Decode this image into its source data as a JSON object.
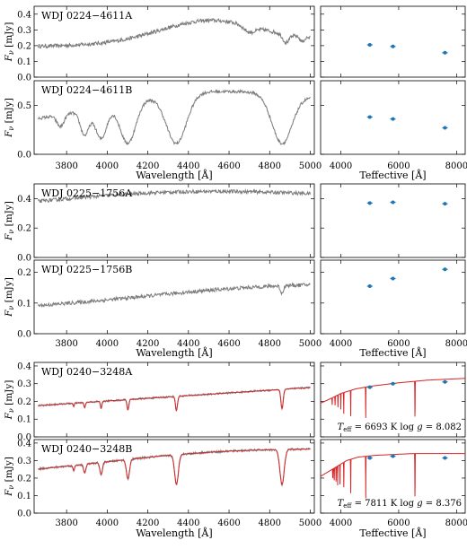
{
  "chart_data": {
    "type": "line",
    "axes": {
      "spec_xlim": [
        3640,
        5020
      ],
      "spec_xticks": [
        3800,
        4000,
        4200,
        4400,
        4600,
        4800,
        5000
      ],
      "spec_xticklabels": [
        "3800",
        "4000",
        "4200",
        "4400",
        "4600",
        "4800",
        "5000"
      ],
      "spec_xlabel": "Wavelength [Å]",
      "phot_xlim": [
        3300,
        8300
      ],
      "phot_xticks": [
        4000,
        6000,
        8000
      ],
      "phot_xticklabels": [
        "4000",
        "6000",
        "8000"
      ],
      "phot_xlabel": "Teffective [Å]",
      "ylabel_main": "F",
      "ylabel_sub": "ν",
      "ylabel_unit": " [mJy]"
    },
    "colors": {
      "observed": "#7a7a7a",
      "model": "#d62728",
      "photometry": "#1f77b4"
    },
    "groups": [
      {
        "panels": [
          {
            "label": "WDJ 0224−4611A",
            "ylim": [
              0,
              0.45
            ],
            "yticks": [
              0,
              0.1,
              0.2,
              0.3,
              0.4
            ],
            "yticklabels": [
              "0.0",
              "0.1",
              "0.2",
              "0.3",
              "0.4"
            ],
            "spectrum_shape": {
              "start": 0.195,
              "end": 0.235,
              "hump_center": 4500,
              "hump_height": 0.14,
              "hump_width": 170,
              "noise": 0.012
            },
            "absorption_lines": [
              {
                "center": 4700,
                "depth": 0.04,
                "width": 40
              },
              {
                "center": 4880,
                "depth": 0.05,
                "width": 22
              },
              {
                "center": 4960,
                "depth": 0.03,
                "width": 15
              }
            ],
            "photometry": [
              {
                "x": 5000,
                "y": 0.205
              },
              {
                "x": 5800,
                "y": 0.195
              },
              {
                "x": 7600,
                "y": 0.155
              }
            ],
            "has_model": false
          },
          {
            "label": "WDJ 0224−4611B",
            "ylim": [
              0,
              0.75
            ],
            "yticks": [
              0,
              0.5
            ],
            "yticklabels": [
              "0.0",
              "0.5"
            ],
            "spectrum_shape": {
              "start": 0.3,
              "end": 0.44,
              "hump_center": 4480,
              "hump_height": 0.25,
              "hump_width": 350,
              "noise": 0.015
            },
            "absorption_lines": [
              {
                "center": 3770,
                "depth": 0.12,
                "width": 25
              },
              {
                "center": 3889,
                "depth": 0.25,
                "width": 30
              },
              {
                "center": 3970,
                "depth": 0.32,
                "width": 40
              },
              {
                "center": 4102,
                "depth": 0.42,
                "width": 55
              },
              {
                "center": 4341,
                "depth": 0.5,
                "width": 70
              },
              {
                "center": 4861,
                "depth": 0.5,
                "width": 70
              }
            ],
            "photometry": [
              {
                "x": 5000,
                "y": 0.38
              },
              {
                "x": 5800,
                "y": 0.36
              },
              {
                "x": 7600,
                "y": 0.27
              }
            ],
            "has_model": false
          }
        ]
      },
      {
        "panels": [
          {
            "label": "WDJ 0225−1756A",
            "ylim": [
              0,
              0.5
            ],
            "yticks": [
              0,
              0.2,
              0.4
            ],
            "yticklabels": [
              "0.0",
              "0.2",
              "0.4"
            ],
            "spectrum_shape": {
              "start": 0.31,
              "end": 0.36,
              "hump_center": 4350,
              "hump_height": 0.11,
              "hump_width": 520,
              "noise": 0.012
            },
            "absorption_lines": [],
            "photometry": [
              {
                "x": 5000,
                "y": 0.37
              },
              {
                "x": 5800,
                "y": 0.375
              },
              {
                "x": 7600,
                "y": 0.365
              }
            ],
            "has_model": false
          },
          {
            "label": "WDJ 0225−1756B",
            "ylim": [
              0,
              0.24
            ],
            "yticks": [
              0,
              0.1,
              0.2
            ],
            "yticklabels": [
              "0.0",
              "0.1",
              "0.2"
            ],
            "spectrum_shape": {
              "start": 0.09,
              "end": 0.15,
              "hump_center": 4650,
              "hump_height": 0.015,
              "hump_width": 300,
              "noise": 0.006
            },
            "absorption_lines": [
              {
                "center": 4860,
                "depth": 0.025,
                "width": 10
              }
            ],
            "photometry": [
              {
                "x": 5000,
                "y": 0.155
              },
              {
                "x": 5800,
                "y": 0.18
              },
              {
                "x": 7600,
                "y": 0.21
              }
            ],
            "has_model": false
          }
        ]
      },
      {
        "panels": [
          {
            "label": "WDJ 0240−3248A",
            "ylim": [
              0,
              0.42
            ],
            "yticks": [
              0,
              0.1,
              0.2,
              0.3,
              0.4
            ],
            "yticklabels": [
              "0.0",
              "0.1",
              "0.2",
              "0.3",
              "0.4"
            ],
            "spectrum_shape": {
              "start": 0.175,
              "end": 0.28,
              "hump_center": 4400,
              "hump_height": 0,
              "hump_width": 300,
              "noise": 0.005
            },
            "absorption_lines": [
              {
                "center": 3835,
                "depth": 0.02,
                "width": 4
              },
              {
                "center": 3889,
                "depth": 0.03,
                "width": 5
              },
              {
                "center": 3970,
                "depth": 0.04,
                "width": 5
              },
              {
                "center": 4102,
                "depth": 0.06,
                "width": 6
              },
              {
                "center": 4341,
                "depth": 0.08,
                "width": 7
              },
              {
                "center": 4861,
                "depth": 0.11,
                "width": 8
              }
            ],
            "photometry": [
              {
                "x": 5000,
                "y": 0.28
              },
              {
                "x": 5800,
                "y": 0.3
              },
              {
                "x": 7600,
                "y": 0.31
              }
            ],
            "has_model": true,
            "model_sed": {
              "knots": [
                [
                  3300,
                  0.19
                ],
                [
                  3700,
                  0.22
                ],
                [
                  4000,
                  0.245
                ],
                [
                  4500,
                  0.27
                ],
                [
                  5000,
                  0.285
                ],
                [
                  6000,
                  0.305
                ],
                [
                  7000,
                  0.32
                ],
                [
                  8300,
                  0.33
                ]
              ],
              "lines": [
                [
                  3700,
                  0.04
                ],
                [
                  3800,
                  0.05
                ],
                [
                  3900,
                  0.07
                ],
                [
                  4000,
                  0.09
                ],
                [
                  4100,
                  0.12
                ],
                [
                  4340,
                  0.15
                ],
                [
                  4860,
                  0.18
                ],
                [
                  6563,
                  0.22
                ]
              ]
            },
            "annotation": {
              "teff_value": "6693",
              "logg_value": "8.082"
            }
          },
          {
            "label": "WDJ 0240−3248B",
            "ylim": [
              0,
              0.42
            ],
            "yticks": [
              0,
              0.1,
              0.2,
              0.3,
              0.4
            ],
            "yticklabels": [
              "0.0",
              "0.1",
              "0.2",
              "0.3",
              "0.4"
            ],
            "spectrum_shape": {
              "start": 0.24,
              "end": 0.34,
              "hump_center": 4500,
              "hump_height": 0.045,
              "hump_width": 350,
              "noise": 0.006
            },
            "absorption_lines": [
              {
                "center": 3835,
                "depth": 0.03,
                "width": 6
              },
              {
                "center": 3889,
                "depth": 0.05,
                "width": 8
              },
              {
                "center": 3970,
                "depth": 0.07,
                "width": 9
              },
              {
                "center": 4102,
                "depth": 0.11,
                "width": 11
              },
              {
                "center": 4341,
                "depth": 0.17,
                "width": 13
              },
              {
                "center": 4861,
                "depth": 0.2,
                "width": 15
              }
            ],
            "photometry": [
              {
                "x": 5000,
                "y": 0.315
              },
              {
                "x": 5800,
                "y": 0.325
              },
              {
                "x": 7600,
                "y": 0.315
              }
            ],
            "has_model": true,
            "model_sed": {
              "knots": [
                [
                  3300,
                  0.21
                ],
                [
                  3600,
                  0.24
                ],
                [
                  3900,
                  0.27
                ],
                [
                  4200,
                  0.3
                ],
                [
                  4600,
                  0.32
                ],
                [
                  5200,
                  0.33
                ],
                [
                  6500,
                  0.34
                ],
                [
                  8300,
                  0.34
                ]
              ],
              "lines": [
                [
                  3720,
                  0.06
                ],
                [
                  3770,
                  0.08
                ],
                [
                  3835,
                  0.09
                ],
                [
                  3889,
                  0.11
                ],
                [
                  3970,
                  0.13
                ],
                [
                  4102,
                  0.16
                ],
                [
                  4340,
                  0.2
                ],
                [
                  4861,
                  0.24
                ],
                [
                  6563,
                  0.27
                ]
              ]
            },
            "annotation": {
              "teff_value": "7811",
              "logg_value": "8.376"
            }
          }
        ]
      }
    ]
  }
}
